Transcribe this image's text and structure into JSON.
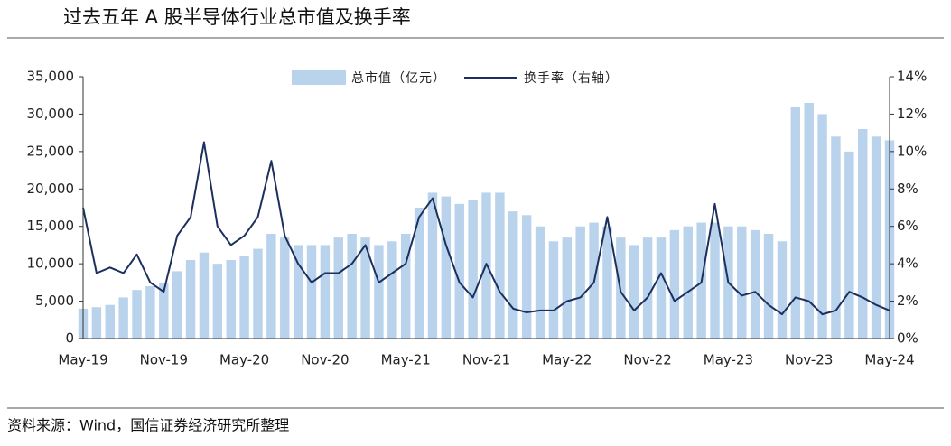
{
  "chart_data": {
    "type": "combo",
    "title": "过去五年 A 股半导体行业总市值及换手率",
    "source": "资料来源：Wind，国信证券经济研究所整理",
    "categories": [
      "May-19",
      null,
      null,
      null,
      null,
      null,
      "Nov-19",
      null,
      null,
      null,
      null,
      null,
      "May-20",
      null,
      null,
      null,
      null,
      null,
      "Nov-20",
      null,
      null,
      null,
      null,
      null,
      "May-21",
      null,
      null,
      null,
      null,
      null,
      "Nov-21",
      null,
      null,
      null,
      null,
      null,
      "May-22",
      null,
      null,
      null,
      null,
      null,
      "Nov-22",
      null,
      null,
      null,
      null,
      null,
      "May-23",
      null,
      null,
      null,
      null,
      null,
      "Nov-23",
      null,
      null,
      null,
      null,
      null,
      "May-24"
    ],
    "series": [
      {
        "name": "总市值（亿元）",
        "type": "bar",
        "color": "#b9d3ec",
        "values": [
          4000,
          4200,
          4500,
          5500,
          6500,
          7000,
          7500,
          9000,
          10500,
          11500,
          10000,
          10500,
          11000,
          12000,
          14000,
          13500,
          12500,
          12500,
          12500,
          13500,
          14000,
          13500,
          12500,
          13000,
          14000,
          17500,
          19500,
          19000,
          18000,
          18500,
          19500,
          19500,
          17000,
          16500,
          15000,
          13000,
          13500,
          15000,
          15500,
          15000,
          13500,
          12500,
          13500,
          13500,
          14500,
          15000,
          15500,
          15500,
          15000,
          15000,
          14500,
          14000,
          13000,
          31000,
          31500,
          30000,
          27000,
          25000,
          28000,
          27000,
          26500
        ]
      },
      {
        "name": "换手率（右轴）",
        "type": "line",
        "axis": "y2",
        "color": "#1c2f5e",
        "values": [
          7,
          3.5,
          3.8,
          3.5,
          4.5,
          3,
          2.5,
          5.5,
          6.5,
          10.5,
          6,
          5,
          5.5,
          6.5,
          9.5,
          5.5,
          4,
          3,
          3.5,
          3.5,
          4,
          5,
          3,
          3.5,
          4,
          6.5,
          7.5,
          5,
          3,
          2.2,
          4,
          2.5,
          1.6,
          1.4,
          1.5,
          1.5,
          2,
          2.2,
          3,
          6.5,
          2.5,
          1.5,
          2.2,
          3.5,
          2,
          2.5,
          3,
          7.2,
          3,
          2.3,
          2.5,
          1.8,
          1.3,
          2.2,
          2,
          1.3,
          1.5,
          2.5,
          2.2,
          1.8,
          1.5
        ]
      }
    ],
    "ylim": [
      0,
      35000
    ],
    "yticks": [
      0,
      {
        "value": 5000,
        "label": "5,000"
      },
      {
        "value": 10000,
        "label": "10,000"
      },
      {
        "value": 15000,
        "label": "15,000"
      },
      {
        "value": 20000,
        "label": "20,000"
      },
      {
        "value": 25000,
        "label": "25,000"
      },
      {
        "value": 30000,
        "label": "30,000"
      },
      {
        "value": 35000,
        "label": "35,000"
      }
    ],
    "y2lim": [
      0,
      14
    ],
    "y2ticks": [
      {
        "value": 0,
        "label": "0%"
      },
      {
        "value": 2,
        "label": "2%"
      },
      {
        "value": 4,
        "label": "4%"
      },
      {
        "value": 6,
        "label": "6%"
      },
      {
        "value": 8,
        "label": "8%"
      },
      {
        "value": 10,
        "label": "10%"
      },
      {
        "value": 12,
        "label": "12%"
      },
      {
        "value": 14,
        "label": "14%"
      }
    ],
    "grid": false
  }
}
